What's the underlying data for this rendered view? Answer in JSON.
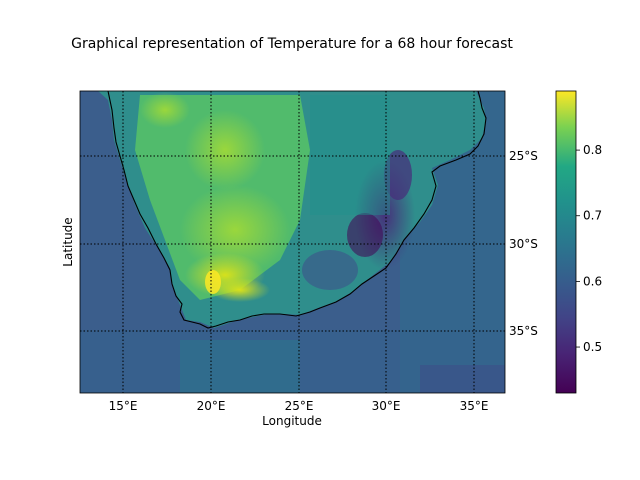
{
  "title": "Graphical representation of Temperature for a 68 hour forecast",
  "xlabel": "Longitude",
  "ylabel": "Latitude",
  "x_ticks": [
    {
      "lon": 15,
      "label": "15°E"
    },
    {
      "lon": 20,
      "label": "20°E"
    },
    {
      "lon": 25,
      "label": "25°E"
    },
    {
      "lon": 30,
      "label": "30°E"
    },
    {
      "lon": 35,
      "label": "35°E"
    }
  ],
  "y_ticks": [
    {
      "lat": -25,
      "label": "25°S"
    },
    {
      "lat": -30,
      "label": "30°S"
    },
    {
      "lat": -35,
      "label": "35°S"
    }
  ],
  "colorbar": {
    "colormap": "viridis",
    "range": [
      0.43,
      0.89
    ],
    "ticks": [
      {
        "value": 0.5,
        "label": "0.5"
      },
      {
        "value": 0.6,
        "label": "0.6"
      },
      {
        "value": 0.7,
        "label": "0.7"
      },
      {
        "value": 0.8,
        "label": "0.8"
      }
    ]
  },
  "map_extent": {
    "lon": [
      12.5,
      36.7
    ],
    "lat": [
      -38.6,
      -21.4
    ]
  },
  "gridlines": {
    "style": "dotted",
    "color": "#000000"
  },
  "colors": {
    "ocean": "#3a5f8c",
    "coastline": "#000000"
  }
}
